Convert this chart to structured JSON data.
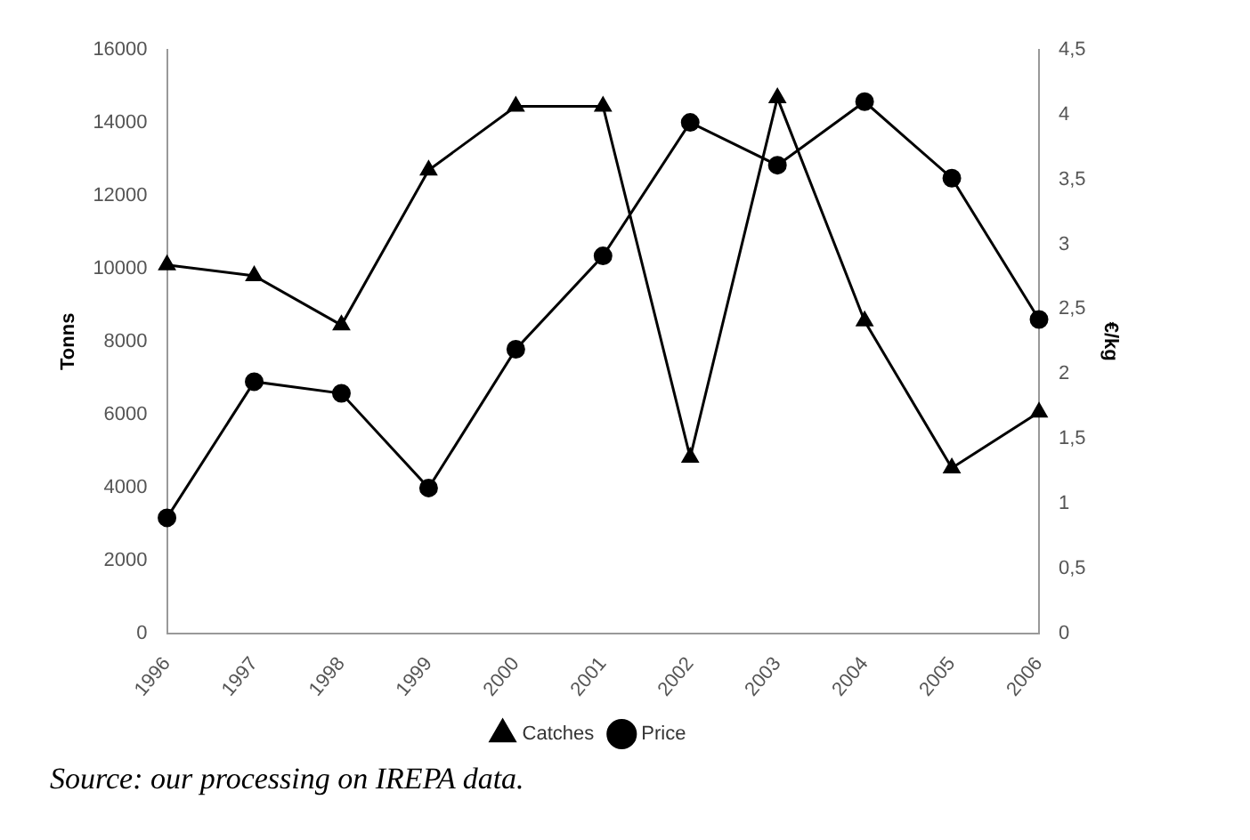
{
  "chart_data": {
    "type": "line",
    "categories": [
      "1996",
      "1997",
      "1998",
      "1999",
      "2000",
      "2001",
      "2002",
      "2003",
      "2004",
      "2005",
      "2006"
    ],
    "series": [
      {
        "name": "Catches",
        "color": "#000000",
        "marker": "triangle",
        "values": [
          10100,
          9800,
          8450,
          12700,
          14450,
          14450,
          4820,
          14680,
          8560,
          4530,
          6060
        ]
      },
      {
        "name": "Price",
        "color": "#000000",
        "marker": "circle",
        "axis": "y2",
        "values": [
          0.89,
          1.94,
          1.85,
          1.12,
          2.19,
          2.91,
          3.94,
          3.61,
          4.1,
          3.51,
          2.42
        ]
      }
    ],
    "ylabel": "Tonns",
    "y2label": "€/kg",
    "ylim": [
      0,
      16000
    ],
    "yticks": [
      0,
      2000,
      4000,
      6000,
      8000,
      10000,
      12000,
      14000,
      16000
    ],
    "y2lim": [
      0,
      4.5
    ],
    "y2ticks": [
      {
        "value": 0,
        "label": "0"
      },
      {
        "value": 0.5,
        "label": "0,5"
      },
      {
        "value": 1,
        "label": "1"
      },
      {
        "value": 1.5,
        "label": "1,5"
      },
      {
        "value": 2,
        "label": "2"
      },
      {
        "value": 2.5,
        "label": "2,5"
      },
      {
        "value": 3,
        "label": "3"
      },
      {
        "value": 3.5,
        "label": "3,5"
      },
      {
        "value": 4,
        "label": "4"
      },
      {
        "value": 4.5,
        "label": "4,5"
      }
    ],
    "grid": false,
    "legend": "bottom",
    "annotations": [
      "Source: our processing on IREPA data."
    ]
  }
}
